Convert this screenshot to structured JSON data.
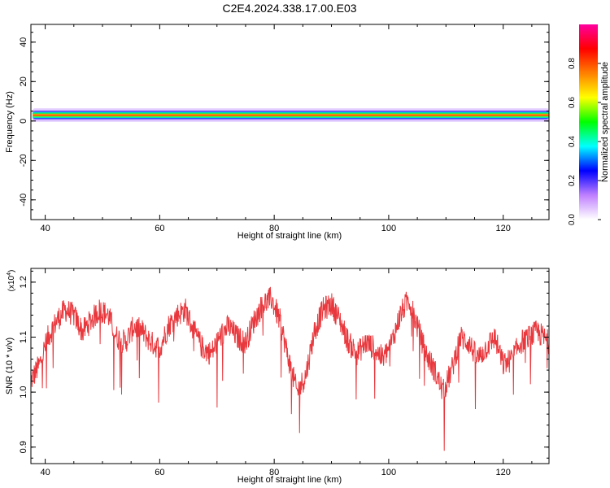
{
  "title": "C2E4.2024.338.17.00.E03",
  "colors": {
    "snr_line": "#e8383d",
    "axis": "#000000"
  },
  "colorbar": {
    "label": "Normalized spectral amplitude",
    "ticks": [
      "0.0",
      "0.2",
      "0.4",
      "0.6",
      "0.8"
    ],
    "tick_values": [
      0.0,
      0.2,
      0.4,
      0.6,
      0.8
    ],
    "range": [
      0,
      1
    ],
    "colormap": [
      "#ffffff",
      "#c080ff",
      "#0000ff",
      "#00ffff",
      "#00ff00",
      "#ffff00",
      "#ff8000",
      "#ff0000",
      "#ff00a0"
    ]
  },
  "chart_data": [
    {
      "type": "heatmap",
      "xlabel": "Height of straight line (km)",
      "ylabel": "Frequency (Hz)",
      "xlim": [
        37.5,
        128
      ],
      "ylim": [
        -50,
        49
      ],
      "xticks": [
        40,
        60,
        80,
        100,
        120
      ],
      "yticks": [
        -40,
        -20,
        0,
        20,
        40
      ],
      "band": {
        "center_hz": 3,
        "core_halfwidth_hz": 1.2,
        "outer_halfwidth_hz": 3.5,
        "peak_amplitude": 1.0
      }
    },
    {
      "type": "line",
      "xlabel": "Height of straight line (km)",
      "ylabel": "SNR (10 * v/v)",
      "y_multiplier": "(x10^4)",
      "y_multiplier_base": "(x10",
      "y_multiplier_exp": "4",
      "y_multiplier_close": ")",
      "xlim": [
        37.5,
        128
      ],
      "ylim": [
        0.87,
        1.225
      ],
      "xticks": [
        40,
        60,
        80,
        100,
        120
      ],
      "yticks": [
        0.9,
        1.0,
        1.1,
        1.2
      ],
      "ytick_labels": [
        "0.9",
        "1.0",
        "1.1",
        "1.2"
      ],
      "series": [
        {
          "x": [
            37.5,
            39,
            40.5,
            42,
            43.5,
            45,
            46.5,
            48,
            49.5,
            51,
            52.5,
            54,
            55.5,
            57,
            58.5,
            60,
            61.5,
            63,
            64.5,
            66,
            67.5,
            69,
            70.5,
            72,
            73.5,
            75,
            76.5,
            78,
            79.5,
            81,
            82.5,
            84,
            85.5,
            87,
            88.5,
            90,
            91.5,
            93,
            94.5,
            96,
            97.5,
            99,
            100.5,
            102,
            103.5,
            105,
            106.5,
            108,
            109.5,
            111,
            112.5,
            114,
            115.5,
            117,
            118.5,
            120,
            121.5,
            123,
            124.5,
            126,
            128
          ],
          "y": [
            1.02,
            1.05,
            1.1,
            1.13,
            1.15,
            1.14,
            1.11,
            1.13,
            1.15,
            1.14,
            1.1,
            1.09,
            1.12,
            1.11,
            1.09,
            1.08,
            1.12,
            1.14,
            1.15,
            1.11,
            1.08,
            1.07,
            1.1,
            1.12,
            1.1,
            1.09,
            1.13,
            1.16,
            1.17,
            1.13,
            1.06,
            1.0,
            1.03,
            1.11,
            1.15,
            1.16,
            1.13,
            1.09,
            1.07,
            1.09,
            1.08,
            1.06,
            1.09,
            1.14,
            1.17,
            1.12,
            1.07,
            1.04,
            1.0,
            1.04,
            1.1,
            1.09,
            1.06,
            1.08,
            1.1,
            1.05,
            1.06,
            1.09,
            1.1,
            1.11,
            1.09
          ]
        }
      ]
    }
  ]
}
